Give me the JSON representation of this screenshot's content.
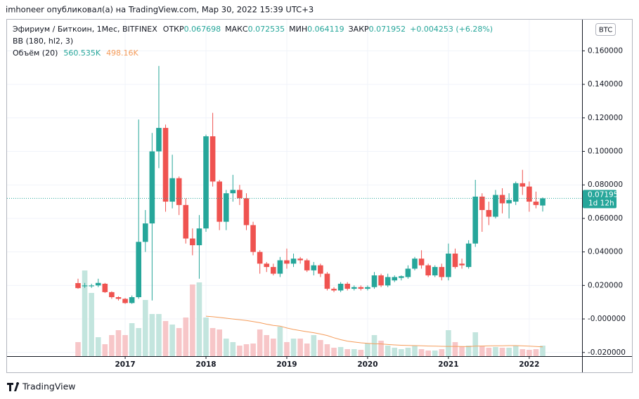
{
  "header": {
    "published": "imhoneer опубликовал(а) на TradingView.com, Мар 30, 2022 15:39 UTC+3",
    "currency_button": "BTC",
    "countdown": "1d 12h",
    "brand": "TradingView"
  },
  "chart_data": {
    "type": "candlestick",
    "title": "Эфириум / Биткоин, 1Мес, BITFINEX",
    "ohlc_labels": {
      "open": "ОТКР",
      "high": "МАКС",
      "low": "МИН",
      "close": "ЗАКР"
    },
    "change_label": "+0.004253 (+6.28%)",
    "indicator": "BB (180, hl2, 3)",
    "volume_name": "Объём (20)",
    "volume_value_label": "560.535K",
    "volume_ma_value_label": "498.16K",
    "categories": [
      null,
      null,
      null,
      null,
      null,
      null,
      null,
      "2017",
      null,
      null,
      null,
      null,
      null,
      null,
      null,
      null,
      null,
      null,
      null,
      "2018",
      null,
      null,
      null,
      null,
      null,
      null,
      null,
      null,
      null,
      null,
      null,
      "2019",
      null,
      null,
      null,
      null,
      null,
      null,
      null,
      null,
      null,
      null,
      null,
      "2020",
      null,
      null,
      null,
      null,
      null,
      null,
      null,
      null,
      null,
      null,
      null,
      "2021",
      null,
      null,
      null,
      null,
      null,
      null,
      null,
      null,
      null,
      null,
      null,
      "2022",
      null,
      null
    ],
    "open": [
      0.0214,
      0.0195,
      0.0195,
      0.02,
      0.021,
      0.016,
      0.013,
      0.012,
      0.0095,
      0.013,
      0.046,
      0.057,
      0.1,
      0.114,
      0.07,
      0.084,
      0.068,
      0.048,
      0.044,
      0.054,
      0.109,
      0.082,
      0.058,
      0.075,
      0.077,
      0.072,
      0.056,
      0.04,
      0.033,
      0.031,
      0.027,
      0.035,
      0.033,
      0.036,
      0.035,
      0.029,
      0.032,
      0.027,
      0.018,
      0.017,
      0.021,
      0.018,
      0.019,
      0.018,
      0.019,
      0.026,
      0.02,
      0.023,
      0.0245,
      0.025,
      0.03,
      0.036,
      0.032,
      0.026,
      0.031,
      0.025,
      0.039,
      0.033,
      0.031,
      0.045,
      0.073,
      0.065,
      0.061,
      0.074,
      0.069,
      0.07,
      0.081,
      0.079,
      0.07,
      0.067698
    ],
    "high": [
      0.024,
      0.0215,
      0.021,
      0.024,
      0.0215,
      0.0165,
      0.0135,
      0.0125,
      0.014,
      0.119,
      0.065,
      0.111,
      0.151,
      0.116,
      0.098,
      0.085,
      0.072,
      0.054,
      0.062,
      0.11,
      0.123,
      0.083,
      0.077,
      0.086,
      0.08,
      0.075,
      0.058,
      0.041,
      0.034,
      0.033,
      0.037,
      0.042,
      0.039,
      0.037,
      0.036,
      0.034,
      0.033,
      0.028,
      0.019,
      0.022,
      0.022,
      0.02,
      0.02,
      0.02,
      0.028,
      0.027,
      0.027,
      0.026,
      0.026,
      0.032,
      0.037,
      0.041,
      0.033,
      0.032,
      0.033,
      0.045,
      0.042,
      0.036,
      0.047,
      0.083,
      0.075,
      0.07,
      0.077,
      0.078,
      0.075,
      0.082,
      0.089,
      0.082,
      0.076,
      0.072535
    ],
    "low": [
      0.018,
      0.0185,
      0.0185,
      0.019,
      0.0155,
      0.012,
      0.011,
      0.009,
      0.009,
      0.012,
      0.04,
      0.011,
      0.09,
      0.064,
      0.066,
      0.062,
      0.045,
      0.038,
      0.024,
      0.052,
      0.079,
      0.053,
      0.053,
      0.07,
      0.068,
      0.053,
      0.038,
      0.027,
      0.028,
      0.026,
      0.025,
      0.03,
      0.031,
      0.033,
      0.028,
      0.026,
      0.025,
      0.017,
      0.016,
      0.016,
      0.017,
      0.017,
      0.017,
      0.017,
      0.018,
      0.019,
      0.019,
      0.022,
      0.023,
      0.024,
      0.029,
      0.03,
      0.025,
      0.025,
      0.023,
      0.023,
      0.03,
      0.03,
      0.03,
      0.043,
      0.052,
      0.056,
      0.06,
      0.063,
      0.06,
      0.068,
      0.074,
      0.064,
      0.066,
      0.064119
    ],
    "close": [
      0.0184,
      0.02,
      0.02,
      0.0215,
      0.016,
      0.013,
      0.012,
      0.0095,
      0.013,
      0.046,
      0.057,
      0.1,
      0.114,
      0.07,
      0.084,
      0.068,
      0.048,
      0.044,
      0.054,
      0.109,
      0.082,
      0.058,
      0.075,
      0.077,
      0.072,
      0.056,
      0.04,
      0.033,
      0.031,
      0.027,
      0.035,
      0.033,
      0.036,
      0.035,
      0.029,
      0.032,
      0.027,
      0.018,
      0.017,
      0.021,
      0.018,
      0.019,
      0.018,
      0.019,
      0.026,
      0.02,
      0.025,
      0.025,
      0.0255,
      0.03,
      0.036,
      0.032,
      0.026,
      0.031,
      0.025,
      0.039,
      0.031,
      0.032,
      0.045,
      0.073,
      0.065,
      0.061,
      0.074,
      0.069,
      0.071,
      0.081,
      0.079,
      0.07,
      0.068,
      0.071952
    ],
    "volume": [
      748,
      4563,
      3366,
      1010,
      636,
      1122,
      1384,
      1122,
      1758,
      1496,
      2992,
      2244,
      2244,
      1870,
      1683,
      1496,
      2057,
      3815,
      3927,
      2057,
      1496,
      1421,
      935,
      748,
      561,
      636,
      673,
      1421,
      1122,
      935,
      1571,
      748,
      935,
      935,
      673,
      1122,
      860,
      636,
      449,
      486,
      374,
      374,
      337,
      673,
      1122,
      823,
      561,
      449,
      374,
      449,
      561,
      374,
      299,
      299,
      374,
      1384,
      748,
      524,
      561,
      1272,
      524,
      449,
      486,
      449,
      449,
      561,
      374,
      337,
      374,
      560.535
    ],
    "volume_ma": [
      null,
      null,
      null,
      null,
      null,
      null,
      null,
      null,
      null,
      null,
      null,
      null,
      null,
      null,
      null,
      null,
      null,
      null,
      null,
      2130,
      2100,
      2060,
      2020,
      1980,
      1940,
      1900,
      1840,
      1780,
      1700,
      1640,
      1600,
      1500,
      1420,
      1360,
      1300,
      1250,
      1180,
      1100,
      980,
      880,
      800,
      750,
      710,
      680,
      660,
      650,
      620,
      600,
      580,
      570,
      560,
      550,
      540,
      530,
      525,
      520,
      520,
      515,
      510,
      530,
      540,
      545,
      550,
      555,
      560,
      560,
      545,
      530,
      515,
      498.16
    ],
    "up_color": "#26a69a",
    "down_color": "#ef5350",
    "volume_up_color": "#c3e5de",
    "volume_down_color": "#f7c6c8",
    "volume_ma_color": "#f59c5a",
    "ylim": [
      -0.0222,
      0.1786
    ],
    "yticks": [
      {
        "value": 0.16,
        "label": "0.160000"
      },
      {
        "value": 0.14,
        "label": "0.140000"
      },
      {
        "value": 0.12,
        "label": "0.120000"
      },
      {
        "value": 0.1,
        "label": "0.100000"
      },
      {
        "value": 0.08,
        "label": "0.080000"
      },
      {
        "value": 0.06,
        "label": "0.060000"
      },
      {
        "value": 0.04,
        "label": "0.040000"
      },
      {
        "value": 0.02,
        "label": "0.020000"
      },
      {
        "value": 0,
        "label": "-0.000000"
      },
      {
        "value": -0.02,
        "label": "-0.020000"
      }
    ],
    "grid": true
  }
}
